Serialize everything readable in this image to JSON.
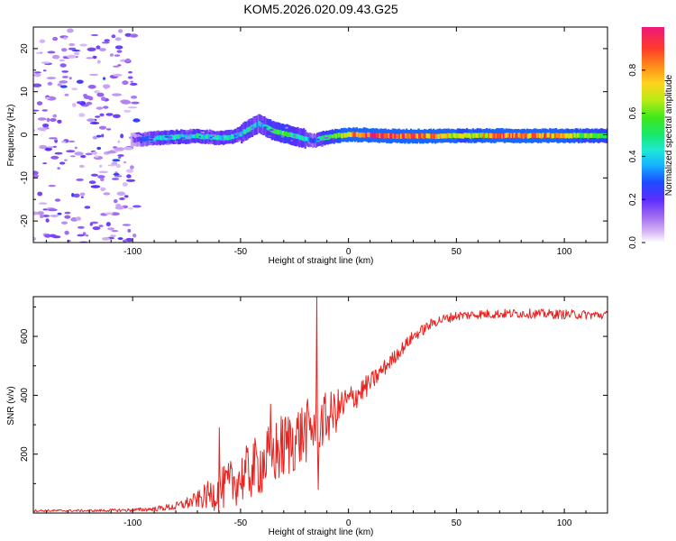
{
  "title": "KOM5.2026.020.09.43.G25",
  "chart_data": [
    {
      "type": "heatmap",
      "xlabel": "Height of straight line (km)",
      "ylabel": "Frequency (Hz)",
      "xlim": [
        -146,
        120
      ],
      "ylim": [
        -25,
        25
      ],
      "xticks": [
        -100,
        -50,
        0,
        50,
        100
      ],
      "xtick_labels": [
        "-100",
        "-50",
        "0",
        "50",
        "100"
      ],
      "yticks": [
        -20,
        -10,
        0,
        10,
        20
      ],
      "ytick_labels": [
        "-20",
        "-10",
        "0",
        "10",
        "20"
      ],
      "colorbar": {
        "label": "Normalized spectral amplitude",
        "range": [
          0,
          1
        ],
        "ticks": [
          0,
          0.2,
          0.4,
          0.6,
          0.8
        ],
        "tick_labels": [
          "0.0",
          "0.2",
          "0.4",
          "0.6",
          "0.8"
        ]
      },
      "ridge": {
        "description": "dominant frequency track (Hz) vs height (km) with normalized amplitude",
        "x": [
          -100,
          -90,
          -80,
          -70,
          -60,
          -55,
          -50,
          -45,
          -42,
          -38,
          -35,
          -30,
          -25,
          -20,
          -17,
          -14,
          -10,
          -5,
          0,
          5,
          10,
          20,
          30,
          40,
          50,
          60,
          70,
          80,
          90,
          100,
          110,
          120
        ],
        "freq": [
          -1.2,
          -0.8,
          -0.5,
          -0.3,
          -0.7,
          -0.6,
          0.3,
          1.8,
          2.6,
          1.6,
          0.9,
          0.3,
          -0.3,
          -1.0,
          -1.5,
          -1.0,
          -0.6,
          -0.2,
          0.0,
          0.0,
          -0.1,
          -0.3,
          -0.3,
          -0.3,
          -0.2,
          -0.2,
          -0.2,
          -0.2,
          -0.2,
          -0.2,
          -0.2,
          -0.2
        ],
        "amplitude": [
          0.15,
          0.4,
          0.45,
          0.45,
          0.4,
          0.45,
          0.4,
          0.45,
          0.35,
          0.45,
          0.5,
          0.55,
          0.45,
          0.4,
          0.25,
          0.45,
          0.5,
          0.65,
          0.8,
          0.92,
          0.95,
          0.92,
          0.85,
          0.8,
          0.65,
          0.7,
          0.92,
          0.8,
          0.85,
          0.7,
          0.6,
          0.5
        ]
      }
    },
    {
      "type": "line",
      "xlabel": "Height of straight line (km)",
      "ylabel": "SNR (v/v)",
      "xlim": [
        -146,
        120
      ],
      "ylim": [
        0,
        735
      ],
      "xticks": [
        -100,
        -50,
        0,
        50,
        100
      ],
      "xtick_labels": [
        "-100",
        "-50",
        "0",
        "50",
        "100"
      ],
      "yticks": [
        200,
        400,
        600
      ],
      "ytick_labels": [
        "200",
        "400",
        "600"
      ],
      "series": [
        {
          "name": "SNR",
          "color": "#e8231f",
          "envelope_x": [
            -146,
            -120,
            -100,
            -90,
            -80,
            -70,
            -60,
            -50,
            -40,
            -30,
            -20,
            -10,
            0,
            10,
            20,
            30,
            40,
            50,
            60,
            80,
            100,
            120
          ],
          "envelope_mean": [
            8,
            8,
            10,
            14,
            22,
            45,
            75,
            120,
            170,
            225,
            275,
            320,
            380,
            440,
            520,
            600,
            650,
            670,
            675,
            678,
            675,
            672
          ],
          "noise_amplitude": [
            4,
            4,
            6,
            8,
            14,
            28,
            70,
            90,
            110,
            120,
            110,
            90,
            55,
            35,
            25,
            20,
            18,
            16,
            16,
            16,
            16,
            16
          ],
          "spikes": [
            {
              "x": -14.5,
              "y": 735
            },
            {
              "x": -14.0,
              "y": 80
            },
            {
              "x": -60,
              "y": 290
            },
            {
              "x": -36,
              "y": 370
            }
          ]
        }
      ]
    }
  ]
}
